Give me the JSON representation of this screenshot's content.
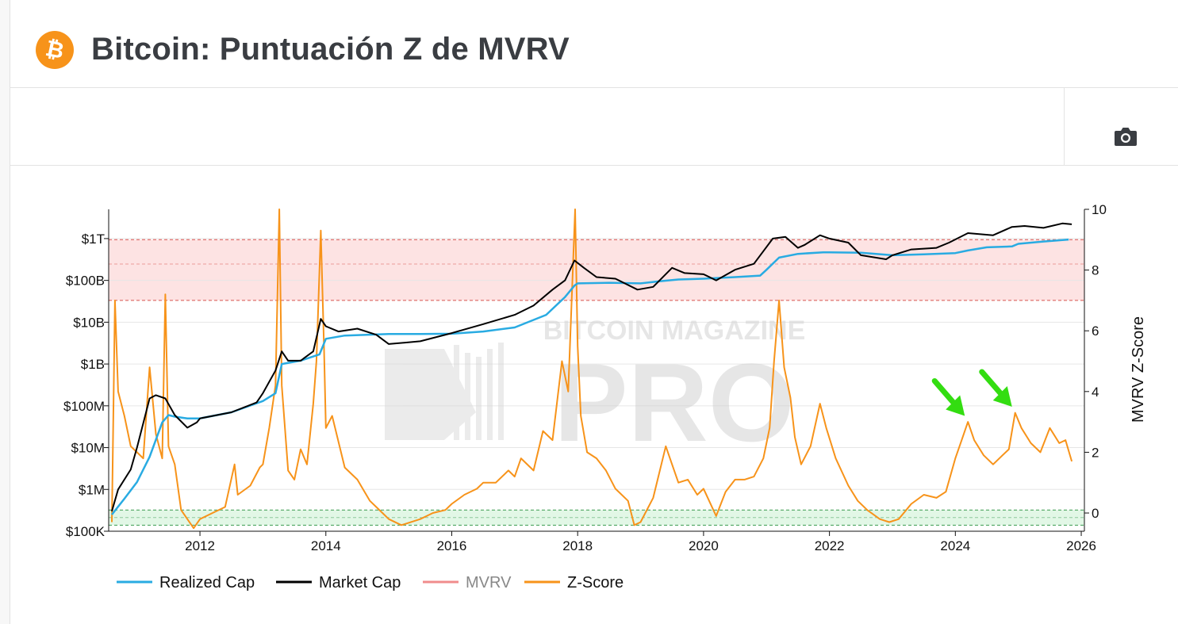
{
  "header": {
    "title": "Bitcoin: Puntuación Z de MVRV",
    "logo_symbol": "₿",
    "logo_icon": "bitcoin-logo-icon"
  },
  "toolbar": {
    "camera_icon": "camera-icon"
  },
  "colors": {
    "realized_cap": "#29abe2",
    "market_cap": "#000000",
    "mvrv": "#f08c8c",
    "zscore": "#f7931a",
    "red_band": "#fde3e3",
    "green_band": "#e2f7e6",
    "annotation_arrow": "#33dd11",
    "brand": "#f7931a"
  },
  "chart_data": {
    "type": "line",
    "title": "Bitcoin: Puntuación Z de MVRV",
    "x_range": [
      2010.55,
      2026.05
    ],
    "x_ticks": [
      2012,
      2014,
      2016,
      2018,
      2020,
      2022,
      2024,
      2026
    ],
    "left_axis": {
      "scale": "log",
      "unit": "USD",
      "range_log10": [
        5,
        12.7
      ],
      "ticks": [
        {
          "value": 100000,
          "label": "$100K"
        },
        {
          "value": 1000000,
          "label": "$1M"
        },
        {
          "value": 10000000,
          "label": "$10M"
        },
        {
          "value": 100000000,
          "label": "$100M"
        },
        {
          "value": 1000000000,
          "label": "$1B"
        },
        {
          "value": 10000000000,
          "label": "$10B"
        },
        {
          "value": 100000000000,
          "label": "$100B"
        },
        {
          "value": 1000000000000,
          "label": "$1T"
        }
      ]
    },
    "right_axis": {
      "label": "MVRV Z-Score",
      "range": [
        -0.6,
        10
      ],
      "ticks": [
        0,
        2,
        4,
        6,
        8,
        10
      ]
    },
    "bands": [
      {
        "axis": "right",
        "from": 7.0,
        "to": 9.0,
        "dashed_mid": 8.2,
        "color": "red"
      },
      {
        "axis": "right",
        "from": -0.4,
        "to": 0.1,
        "dashed_mid": -0.15,
        "color": "green"
      }
    ],
    "series": [
      {
        "name": "Realized Cap",
        "axis": "left",
        "x": [
          2010.6,
          2010.8,
          2011.0,
          2011.2,
          2011.4,
          2011.5,
          2011.6,
          2011.8,
          2012.0,
          2012.5,
          2013.0,
          2013.2,
          2013.3,
          2013.6,
          2013.9,
          2014.0,
          2014.3,
          2015.0,
          2015.5,
          2016.0,
          2016.5,
          2017.0,
          2017.5,
          2017.8,
          2017.95,
          2018.0,
          2018.5,
          2019.0,
          2019.3,
          2019.6,
          2020.0,
          2020.5,
          2020.9,
          2021.0,
          2021.2,
          2021.5,
          2021.9,
          2022.0,
          2022.5,
          2023.0,
          2023.5,
          2024.0,
          2024.2,
          2024.5,
          2024.9,
          2025.0,
          2025.4,
          2025.8
        ],
        "values": [
          250000,
          600000,
          1500000,
          6000000,
          40000000,
          60000000,
          55000000,
          50000000,
          50000000,
          70000000,
          130000000,
          200000000,
          1000000000,
          1200000000,
          1700000000,
          4000000000,
          4800000000,
          5200000000,
          5200000000,
          5300000000,
          6000000000,
          7500000000,
          15000000000,
          40000000000,
          75000000000,
          85000000000,
          88000000000,
          85000000000,
          95000000000,
          105000000000,
          110000000000,
          120000000000,
          130000000000,
          180000000000,
          350000000000,
          430000000000,
          470000000000,
          470000000000,
          460000000000,
          400000000000,
          420000000000,
          450000000000,
          520000000000,
          620000000000,
          650000000000,
          750000000000,
          850000000000,
          950000000000
        ]
      },
      {
        "name": "Market Cap",
        "axis": "left",
        "x": [
          2010.6,
          2010.7,
          2010.9,
          2011.0,
          2011.2,
          2011.3,
          2011.45,
          2011.6,
          2011.8,
          2011.95,
          2012.0,
          2012.5,
          2012.9,
          2013.0,
          2013.2,
          2013.3,
          2013.4,
          2013.6,
          2013.8,
          2013.92,
          2014.0,
          2014.2,
          2014.5,
          2014.8,
          2015.0,
          2015.5,
          2016.0,
          2016.5,
          2017.0,
          2017.3,
          2017.6,
          2017.8,
          2017.95,
          2018.1,
          2018.3,
          2018.6,
          2018.95,
          2019.2,
          2019.5,
          2019.7,
          2020.0,
          2020.2,
          2020.5,
          2020.8,
          2020.95,
          2021.1,
          2021.3,
          2021.5,
          2021.6,
          2021.85,
          2022.0,
          2022.3,
          2022.5,
          2022.9,
          2023.0,
          2023.3,
          2023.7,
          2023.9,
          2024.2,
          2024.6,
          2024.9,
          2025.1,
          2025.4,
          2025.7,
          2025.85
        ],
        "values": [
          300000,
          1000000,
          3000000,
          10000000,
          150000000,
          180000000,
          150000000,
          60000000,
          30000000,
          40000000,
          50000000,
          70000000,
          120000000,
          200000000,
          700000000,
          2000000000,
          1200000000,
          1200000000,
          2000000000,
          12000000000,
          8000000000,
          6000000000,
          7000000000,
          5000000000,
          3000000000,
          3500000000,
          5500000000,
          9000000000,
          15000000000,
          25000000000,
          60000000000,
          100000000000,
          300000000000,
          200000000000,
          120000000000,
          110000000000,
          60000000000,
          70000000000,
          200000000000,
          150000000000,
          140000000000,
          100000000000,
          180000000000,
          250000000000,
          500000000000,
          1000000000000,
          1100000000000,
          600000000000,
          700000000000,
          1200000000000,
          1000000000000,
          800000000000,
          400000000000,
          320000000000,
          400000000000,
          550000000000,
          600000000000,
          800000000000,
          1350000000000,
          1200000000000,
          1900000000000,
          2000000000000,
          1800000000000,
          2300000000000,
          2200000000000
        ]
      },
      {
        "name": "MVRV",
        "axis": "left",
        "visible": false,
        "x": [],
        "values": []
      },
      {
        "name": "Z-Score",
        "axis": "right",
        "x": [
          2010.6,
          2010.65,
          2010.7,
          2010.8,
          2010.9,
          2011.0,
          2011.1,
          2011.2,
          2011.3,
          2011.4,
          2011.45,
          2011.5,
          2011.6,
          2011.7,
          2011.8,
          2011.9,
          2012.0,
          2012.2,
          2012.4,
          2012.55,
          2012.6,
          2012.8,
          2012.95,
          2013.0,
          2013.1,
          2013.2,
          2013.26,
          2013.3,
          2013.4,
          2013.5,
          2013.6,
          2013.7,
          2013.8,
          2013.85,
          2013.92,
          2013.97,
          2014.0,
          2014.1,
          2014.3,
          2014.5,
          2014.7,
          2014.9,
          2015.0,
          2015.2,
          2015.5,
          2015.7,
          2015.9,
          2016.0,
          2016.2,
          2016.4,
          2016.5,
          2016.7,
          2016.9,
          2017.0,
          2017.1,
          2017.3,
          2017.45,
          2017.6,
          2017.75,
          2017.85,
          2017.96,
          2018.0,
          2018.05,
          2018.15,
          2018.3,
          2018.45,
          2018.6,
          2018.8,
          2018.9,
          2019.0,
          2019.2,
          2019.4,
          2019.5,
          2019.6,
          2019.75,
          2019.9,
          2020.0,
          2020.2,
          2020.35,
          2020.5,
          2020.65,
          2020.8,
          2020.95,
          2021.05,
          2021.12,
          2021.2,
          2021.28,
          2021.38,
          2021.45,
          2021.55,
          2021.7,
          2021.85,
          2021.95,
          2022.1,
          2022.3,
          2022.45,
          2022.6,
          2022.8,
          2022.95,
          2023.1,
          2023.3,
          2023.5,
          2023.7,
          2023.85,
          2024.0,
          2024.1,
          2024.2,
          2024.3,
          2024.45,
          2024.6,
          2024.75,
          2024.85,
          2024.95,
          2025.05,
          2025.2,
          2025.35,
          2025.5,
          2025.65,
          2025.75,
          2025.85
        ],
        "values": [
          -0.3,
          7.0,
          4.0,
          3.2,
          2.2,
          2.0,
          1.8,
          4.8,
          2.6,
          1.8,
          7.2,
          2.2,
          1.6,
          0.1,
          -0.2,
          -0.5,
          -0.2,
          0.0,
          0.2,
          1.6,
          0.6,
          0.9,
          1.5,
          1.6,
          2.8,
          4.2,
          10.0,
          4.2,
          1.4,
          1.1,
          2.1,
          1.6,
          3.6,
          5.0,
          9.3,
          5.5,
          2.8,
          3.2,
          1.5,
          1.1,
          0.4,
          0.0,
          -0.2,
          -0.4,
          -0.2,
          0.0,
          0.1,
          0.3,
          0.6,
          0.8,
          1.0,
          1.0,
          1.4,
          1.2,
          1.8,
          1.4,
          2.7,
          2.4,
          5.0,
          4.0,
          10.0,
          5.5,
          3.2,
          2.0,
          1.8,
          1.4,
          0.8,
          0.4,
          -0.4,
          -0.3,
          0.5,
          2.2,
          1.6,
          1.0,
          1.1,
          0.6,
          0.8,
          -0.1,
          0.7,
          1.1,
          1.1,
          1.2,
          1.8,
          2.8,
          5.0,
          7.0,
          4.8,
          3.8,
          2.5,
          1.6,
          2.2,
          3.6,
          2.8,
          1.8,
          0.9,
          0.4,
          0.1,
          -0.2,
          -0.3,
          -0.2,
          0.3,
          0.6,
          0.5,
          0.7,
          1.8,
          2.4,
          3.0,
          2.4,
          1.9,
          1.6,
          1.9,
          2.1,
          3.3,
          2.8,
          2.3,
          2.0,
          2.8,
          2.3,
          2.4,
          1.7
        ]
      }
    ],
    "watermark": {
      "line1": "BITCOIN MAGAZINE",
      "line2": "PRO"
    },
    "annotations": [
      {
        "type": "arrow",
        "target_x": 2024.15,
        "target_z": 3.2
      },
      {
        "type": "arrow",
        "target_x": 2024.9,
        "target_z": 3.5
      }
    ]
  },
  "legend": [
    {
      "label": "Realized Cap",
      "color_key": "realized_cap",
      "muted": false
    },
    {
      "label": "Market Cap",
      "color_key": "market_cap",
      "muted": false
    },
    {
      "label": "MVRV",
      "color_key": "mvrv",
      "muted": true
    },
    {
      "label": "Z-Score",
      "color_key": "zscore",
      "muted": false
    }
  ]
}
